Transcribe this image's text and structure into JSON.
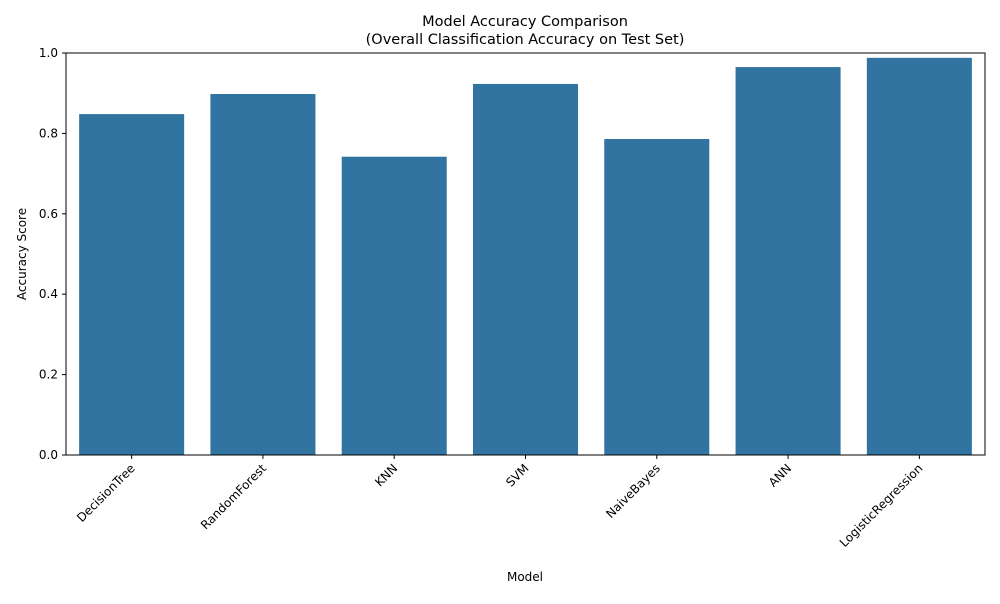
{
  "chart_data": {
    "type": "bar",
    "title": "Model Accuracy Comparison",
    "subtitle": "(Overall Classification Accuracy on Test Set)",
    "xlabel": "Model",
    "ylabel": "Accuracy Score",
    "categories": [
      "DecisionTree",
      "RandomForest",
      "KNN",
      "SVM",
      "NaiveBayes",
      "ANN",
      "LogisticRegression"
    ],
    "values": [
      0.848,
      0.898,
      0.742,
      0.923,
      0.786,
      0.965,
      0.988
    ],
    "ylim": [
      0,
      1.0
    ],
    "yticks": [
      "0.0",
      "0.2",
      "0.4",
      "0.6",
      "0.8",
      "1.0"
    ],
    "bar_color": "#3274a1",
    "grid": false,
    "legend": "none"
  }
}
